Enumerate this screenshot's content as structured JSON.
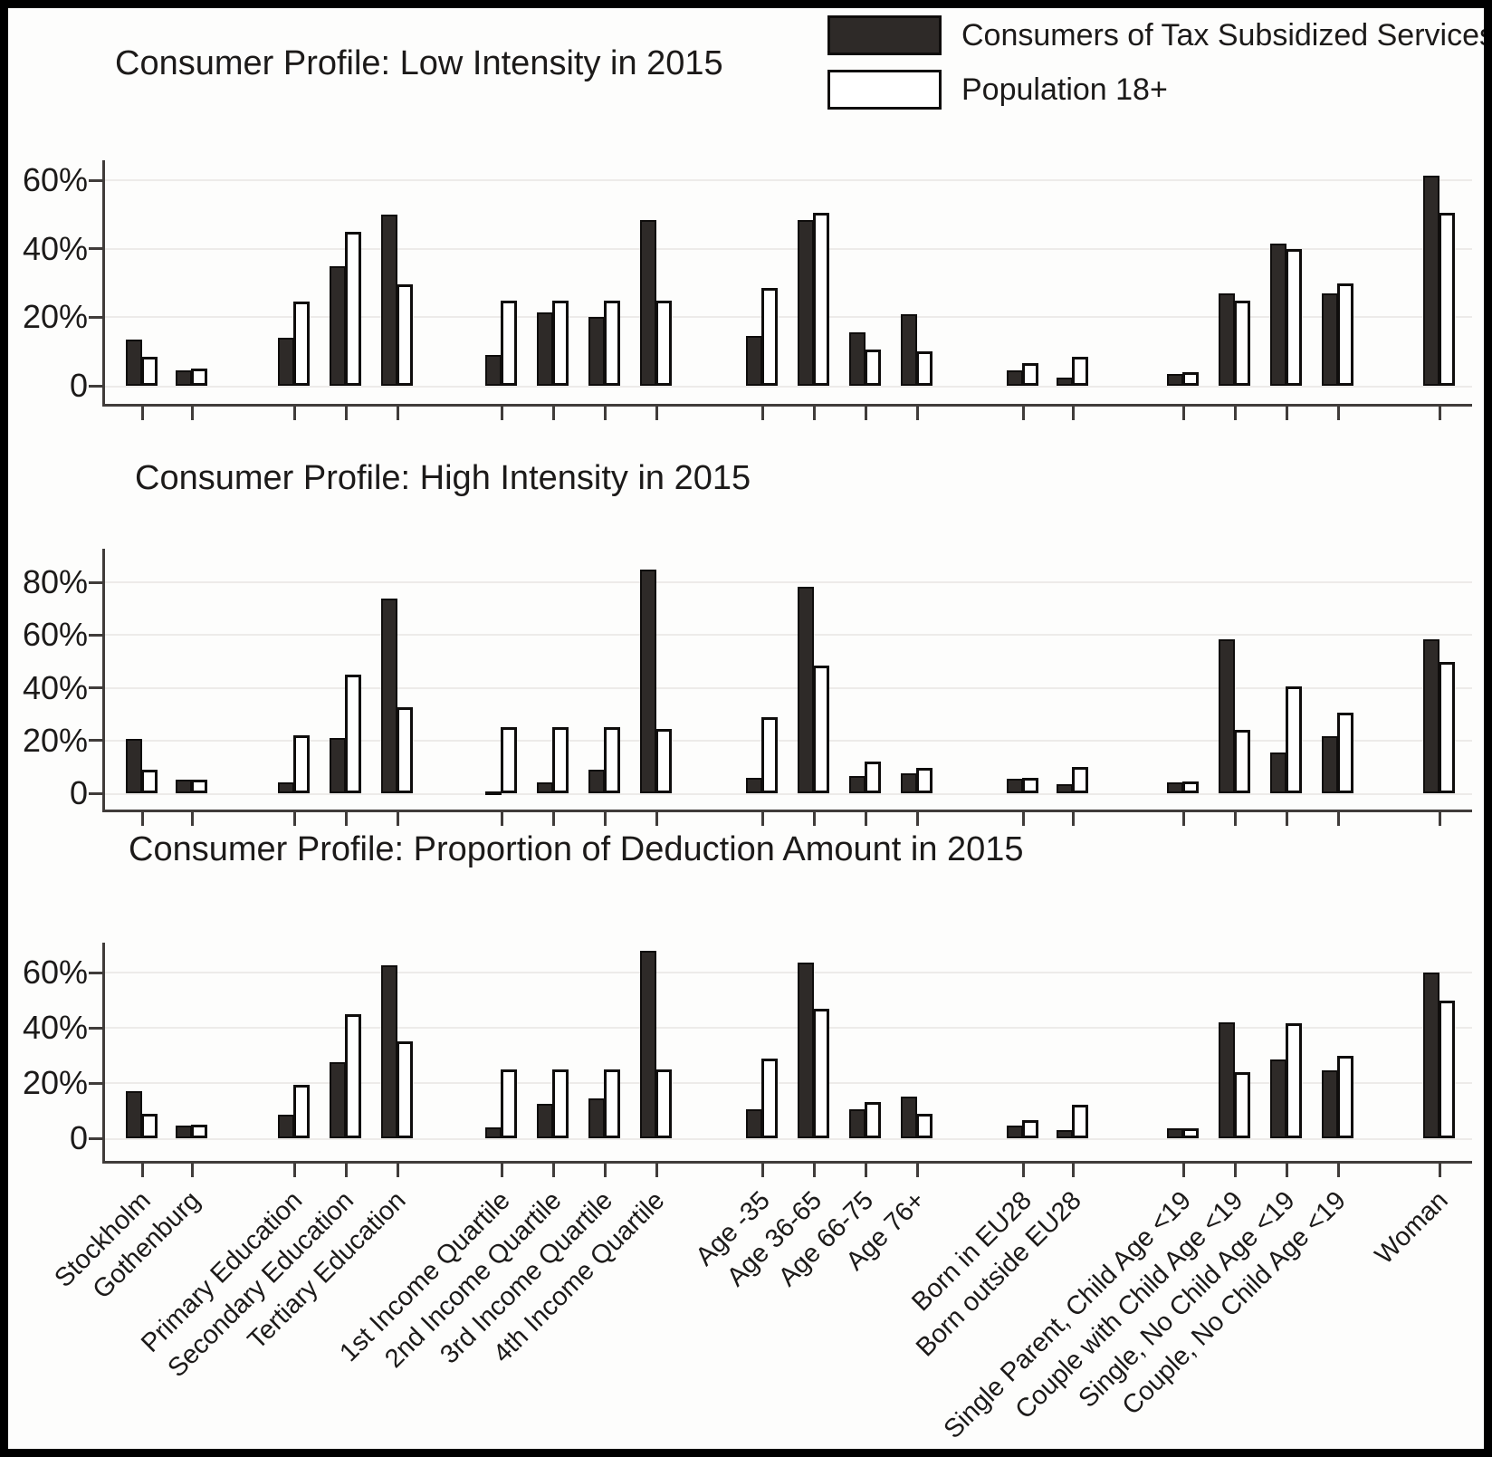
{
  "legend": {
    "items": [
      {
        "label": "Consumers of Tax Subsidized Services",
        "swatch": "dark"
      },
      {
        "label": "Population 18+",
        "swatch": "white"
      }
    ]
  },
  "colors": {
    "bar_dark": "#2e2a28",
    "bar_white": "#ffffff",
    "outline": "#0f0d0c",
    "grid": "#edebe9",
    "axis": "#403c3a",
    "text": "#1c1a19"
  },
  "categories": [
    "Stockholm",
    "Gothenburg",
    "Primary Education",
    "Secondary Education",
    "Tertiary Education",
    "1st Income Quartile",
    "2nd Income Quartile",
    "3rd Income Quartile",
    "4th Income Quartile",
    "Age -35",
    "Age 36-65",
    "Age 66-75",
    "Age 76+",
    "Born in EU28",
    "Born outside EU28",
    "Single Parent, Child Age <19",
    "Couple with Child Age <19",
    "Single, No Child Age <19",
    "Couple, No Child Age <19",
    "Woman"
  ],
  "chart_data": [
    {
      "type": "bar",
      "title": "Consumer Profile: Low Intensity in 2015",
      "xlabel": "",
      "ylabel": "",
      "ylabel_format": "percent",
      "yticks": [
        0,
        20,
        40,
        60
      ],
      "ylim": [
        0,
        66
      ],
      "grid": true,
      "legend_position": "top-right",
      "series": [
        {
          "name": "Consumers of Tax Subsidized Services",
          "values": [
            13.5,
            4.5,
            14,
            35,
            50,
            9,
            21.5,
            20,
            48.5,
            14.5,
            48.5,
            15.5,
            21,
            4.5,
            2.5,
            3.5,
            27,
            41.5,
            27,
            61.5
          ]
        },
        {
          "name": "Population 18+",
          "values": [
            8.5,
            5,
            24.5,
            45,
            29.5,
            25,
            25,
            25,
            25,
            28.5,
            50.5,
            10.5,
            10,
            6.5,
            8.5,
            4,
            25,
            40,
            30,
            50.5
          ]
        }
      ]
    },
    {
      "type": "bar",
      "title": "Consumer Profile: High Intensity in 2015",
      "xlabel": "",
      "ylabel": "",
      "ylabel_format": "percent",
      "yticks": [
        0,
        20,
        40,
        60,
        80
      ],
      "ylim": [
        0,
        93
      ],
      "grid": true,
      "legend_position": "none",
      "series": [
        {
          "name": "Consumers of Tax Subsidized Services",
          "values": [
            20.5,
            5,
            4,
            21,
            74,
            0.5,
            4,
            9,
            85,
            6,
            78.5,
            6.5,
            7.5,
            5.5,
            3.5,
            4,
            58.5,
            15.5,
            21.5,
            58.5
          ]
        },
        {
          "name": "Population 18+",
          "values": [
            9,
            5,
            22,
            45,
            32.5,
            25,
            25,
            25,
            24.5,
            29,
            48.5,
            12,
            9.5,
            6,
            10,
            4.5,
            24,
            40.5,
            30.5,
            50
          ]
        }
      ]
    },
    {
      "type": "bar",
      "title": "Consumer Profile: Proportion of Deduction Amount in 2015",
      "xlabel": "",
      "ylabel": "",
      "ylabel_format": "percent",
      "yticks": [
        0,
        20,
        40,
        60
      ],
      "ylim": [
        0,
        71
      ],
      "grid": true,
      "legend_position": "none",
      "series": [
        {
          "name": "Consumers of Tax Subsidized Services",
          "values": [
            17,
            4.5,
            8.5,
            27.5,
            62.5,
            4,
            12.5,
            14.5,
            68,
            10.5,
            63.5,
            10.5,
            15,
            4.5,
            3,
            3.5,
            42,
            28.5,
            24.5,
            60
          ]
        },
        {
          "name": "Population 18+",
          "values": [
            9,
            5,
            19.5,
            45,
            35,
            25,
            25,
            25,
            25,
            29,
            47,
            13,
            9,
            6.5,
            12,
            3.5,
            24,
            41.5,
            30,
            50
          ]
        }
      ]
    }
  ]
}
